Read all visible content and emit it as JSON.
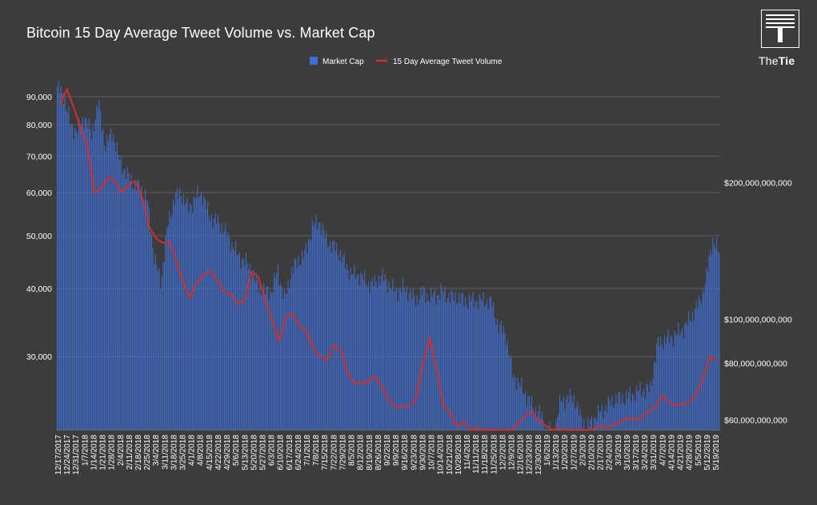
{
  "title": "Bitcoin 15 Day Average Tweet Volume vs. Market Cap",
  "logo": {
    "text_light": "The",
    "text_bold": "Tie"
  },
  "colors": {
    "background": "#3c3c3c",
    "bars": "#3f6fd6",
    "line": "#d62c2c",
    "grid": "#5e5e5e",
    "text": "#ffffff"
  },
  "chart_data": {
    "type": "bar+line",
    "title": "Bitcoin 15 Day Average Tweet Volume vs. Market Cap",
    "legend": {
      "position": "top-center",
      "entries": [
        "Market Cap",
        "15 Day Average Tweet Volume"
      ]
    },
    "grid": true,
    "left_axis": {
      "series": "15 Day Average Tweet Volume",
      "scale": "log",
      "range": [
        22000,
        95000
      ],
      "ticks": [
        30000,
        40000,
        50000,
        60000,
        70000,
        80000,
        90000
      ],
      "tick_labels": [
        "30,000",
        "40,000",
        "50,000",
        "60,000",
        "70,000",
        "80,000",
        "90,000"
      ]
    },
    "right_axis": {
      "series": "Market Cap",
      "scale": "log",
      "range": [
        57000000000,
        330000000000
      ],
      "ticks": [
        60000000000,
        80000000000,
        100000000000,
        200000000000
      ],
      "tick_labels": [
        "$60,000,000,000",
        "$80,000,000,000",
        "$100,000,000,000",
        "$200,000,000,000"
      ]
    },
    "x_tick_labels": [
      "12/17/2017",
      "12/24/2017",
      "12/31/2017",
      "1/7/2018",
      "1/14/2018",
      "1/21/2018",
      "1/28/2018",
      "2/4/2018",
      "2/11/2018",
      "2/18/2018",
      "2/25/2018",
      "3/4/2018",
      "3/11/2018",
      "3/18/2018",
      "3/25/2018",
      "4/1/2018",
      "4/8/2018",
      "4/15/2018",
      "4/22/2018",
      "4/29/2018",
      "5/6/2018",
      "5/13/2018",
      "5/20/2018",
      "5/27/2018",
      "6/3/2018",
      "6/10/2018",
      "6/17/2018",
      "6/24/2018",
      "7/1/2018",
      "7/8/2018",
      "7/15/2018",
      "7/22/2018",
      "7/29/2018",
      "8/5/2018",
      "8/12/2018",
      "8/19/2018",
      "8/26/2018",
      "9/2/2018",
      "9/9/2018",
      "9/16/2018",
      "9/23/2018",
      "9/30/2018",
      "10/7/2018",
      "10/14/2018",
      "10/21/2018",
      "10/28/2018",
      "11/4/2018",
      "11/11/2018",
      "11/18/2018",
      "11/25/2018",
      "12/2/2018",
      "12/9/2018",
      "12/16/2018",
      "12/23/2018",
      "12/30/2018",
      "1/6/2019",
      "1/13/2019",
      "1/20/2019",
      "1/27/2019",
      "2/3/2019",
      "2/10/2019",
      "2/17/2019",
      "2/24/2019",
      "3/3/2019",
      "3/10/2019",
      "3/17/2019",
      "3/24/2019",
      "3/31/2019",
      "4/7/2019",
      "4/14/2019",
      "4/21/2019",
      "4/28/2019",
      "5/5/2019",
      "5/12/2019",
      "5/19/2019"
    ],
    "series": [
      {
        "name": "Market Cap",
        "axis": "right",
        "type": "bar",
        "values": [
          325000000000,
          310000000000,
          265000000000,
          260000000000,
          280000000000,
          255000000000,
          300000000000,
          240000000000,
          260000000000,
          225000000000,
          210000000000,
          200000000000,
          195000000000,
          185000000000,
          140000000000,
          120000000000,
          160000000000,
          185000000000,
          190000000000,
          175000000000,
          185000000000,
          190000000000,
          170000000000,
          165000000000,
          160000000000,
          150000000000,
          140000000000,
          135000000000,
          130000000000,
          120000000000,
          115000000000,
          115000000000,
          128000000000,
          110000000000,
          128000000000,
          135000000000,
          140000000000,
          160000000000,
          165000000000,
          150000000000,
          145000000000,
          140000000000,
          130000000000,
          125000000000,
          125000000000,
          120000000000,
          120000000000,
          125000000000,
          120000000000,
          115000000000,
          117000000000,
          115000000000,
          110000000000,
          115000000000,
          112000000000,
          113000000000,
          115000000000,
          112000000000,
          112000000000,
          110000000000,
          110000000000,
          110000000000,
          110000000000,
          109000000000,
          96000000000,
          94000000000,
          76000000000,
          72000000000,
          68000000000,
          64000000000,
          62000000000,
          57000000000,
          56000000000,
          66000000000,
          67000000000,
          67000000000,
          60000000000,
          58000000000,
          61000000000,
          63000000000,
          65000000000,
          67000000000,
          67000000000,
          68000000000,
          69000000000,
          70000000000,
          70000000000,
          88000000000,
          90000000000,
          91000000000,
          93000000000,
          96000000000,
          102000000000,
          108000000000,
          120000000000,
          150000000000,
          140000000000
        ]
      },
      {
        "name": "15 Day Average Tweet Volume",
        "axis": "left",
        "type": "line",
        "values": [
          87000,
          93000,
          86000,
          79000,
          73000,
          60000,
          61000,
          64000,
          63000,
          60000,
          62000,
          63000,
          59000,
          52000,
          49500,
          48500,
          48800,
          45000,
          41000,
          38500,
          41000,
          42500,
          43000,
          41500,
          39500,
          39000,
          37500,
          38000,
          43000,
          42000,
          38000,
          35000,
          32000,
          35500,
          36000,
          34000,
          33500,
          31000,
          30000,
          29500,
          31500,
          31000,
          28000,
          26800,
          26800,
          27000,
          27600,
          26500,
          25000,
          24200,
          24300,
          24300,
          25000,
          29000,
          32500,
          28500,
          24500,
          23700,
          22300,
          22800,
          21000,
          22200,
          22000,
          21000,
          21200,
          21800,
          22000,
          22600,
          23400,
          23800,
          22800,
          22400,
          22000,
          22200,
          21800,
          21800,
          21900,
          22000,
          22100,
          22400,
          22200,
          22500,
          22800,
          23200,
          22900,
          23200,
          23800,
          24200,
          25500,
          24700,
          24400,
          24500,
          24800,
          25600,
          27500,
          30000,
          29500
        ]
      }
    ]
  }
}
